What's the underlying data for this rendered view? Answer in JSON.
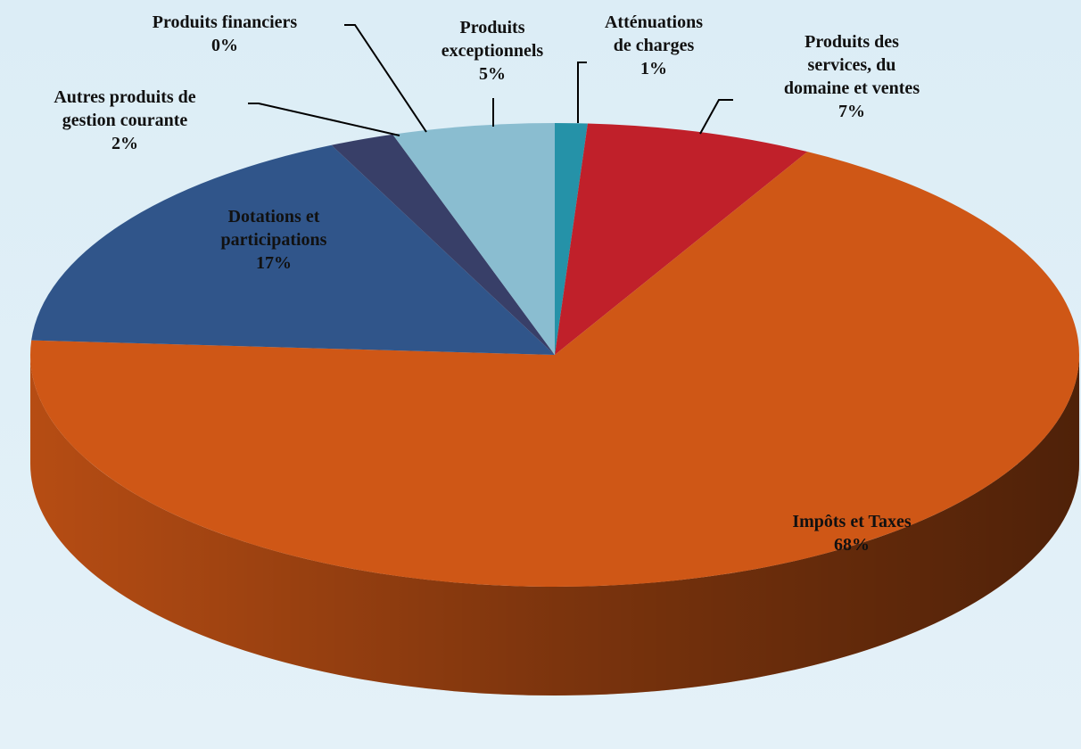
{
  "chart_data": {
    "type": "pie3d",
    "categories": [
      "Atténuations\nde charges",
      "Produits des\nservices, du\ndomaine et ventes",
      "Impôts et Taxes",
      "Dotations et\nparticipations",
      "Autres produits de\ngestion courante",
      "Produits financiers",
      "Produits\nexceptionnels"
    ],
    "values": [
      1,
      7,
      68,
      17,
      2,
      0,
      5
    ],
    "value_labels": [
      "1%",
      "7%",
      "68%",
      "17%",
      "2%",
      "0%",
      "5%"
    ],
    "colors": [
      "#2592a8",
      "#c0202a",
      "#cf5716",
      "#30558a",
      "#383f68",
      "#5a4a7a",
      "#8abdd0"
    ]
  }
}
